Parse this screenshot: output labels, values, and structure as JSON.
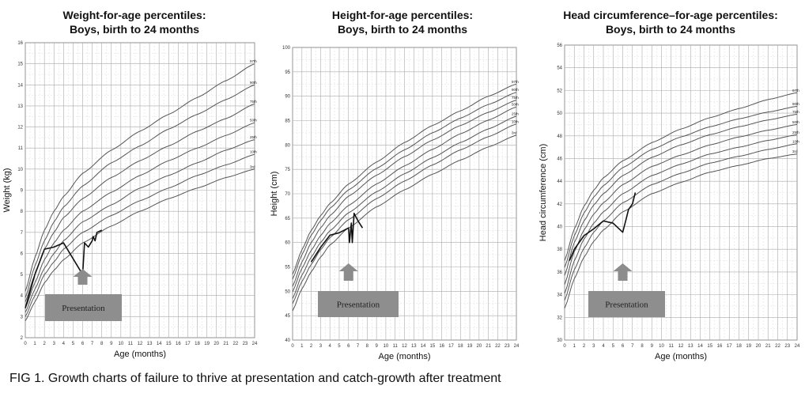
{
  "caption": "FIG 1.  Growth charts of failure to thrive at presentation and catch-growth after treatment",
  "chart_data": [
    {
      "type": "line",
      "title_line1": "Weight-for-age percentiles:",
      "title_line2": "Boys, birth to 24 months",
      "xlabel": "Age (months)",
      "ylabel": "Weight (kg)",
      "xlim": [
        0,
        24
      ],
      "ylim": [
        2,
        16
      ],
      "xticks": [
        0,
        1,
        2,
        3,
        4,
        5,
        6,
        7,
        8,
        9,
        10,
        11,
        12,
        13,
        14,
        15,
        16,
        17,
        18,
        19,
        20,
        21,
        22,
        23,
        24
      ],
      "yticks": [
        2,
        3,
        4,
        5,
        6,
        7,
        8,
        9,
        10,
        11,
        12,
        13,
        14,
        15,
        16
      ],
      "percentile_series": [
        {
          "name": "97th",
          "x": [
            0,
            1,
            2,
            3,
            4,
            6,
            9,
            12,
            15,
            18,
            21,
            24
          ],
          "y": [
            4.2,
            5.8,
            7.1,
            8.0,
            8.7,
            9.8,
            10.9,
            11.8,
            12.6,
            13.4,
            14.2,
            15.0
          ]
        },
        {
          "name": "90th",
          "x": [
            0,
            1,
            2,
            3,
            4,
            6,
            9,
            12,
            15,
            18,
            21,
            24
          ],
          "y": [
            3.9,
            5.4,
            6.6,
            7.5,
            8.2,
            9.2,
            10.3,
            11.1,
            11.9,
            12.6,
            13.3,
            14.0
          ]
        },
        {
          "name": "75th",
          "x": [
            0,
            1,
            2,
            3,
            4,
            6,
            9,
            12,
            15,
            18,
            21,
            24
          ],
          "y": [
            3.7,
            5.0,
            6.2,
            7.0,
            7.7,
            8.6,
            9.6,
            10.4,
            11.1,
            11.8,
            12.4,
            13.1
          ]
        },
        {
          "name": "50th",
          "x": [
            0,
            1,
            2,
            3,
            4,
            6,
            9,
            12,
            15,
            18,
            21,
            24
          ],
          "y": [
            3.4,
            4.6,
            5.7,
            6.5,
            7.1,
            8.0,
            8.9,
            9.7,
            10.4,
            11.0,
            11.6,
            12.2
          ]
        },
        {
          "name": "25th",
          "x": [
            0,
            1,
            2,
            3,
            4,
            6,
            9,
            12,
            15,
            18,
            21,
            24
          ],
          "y": [
            3.2,
            4.3,
            5.3,
            6.0,
            6.6,
            7.5,
            8.3,
            9.1,
            9.7,
            10.3,
            10.9,
            11.4
          ]
        },
        {
          "name": "10th",
          "x": [
            0,
            1,
            2,
            3,
            4,
            6,
            9,
            12,
            15,
            18,
            21,
            24
          ],
          "y": [
            3.0,
            4.0,
            5.0,
            5.6,
            6.2,
            7.0,
            7.8,
            8.5,
            9.1,
            9.7,
            10.2,
            10.7
          ]
        },
        {
          "name": "3rd",
          "x": [
            0,
            1,
            2,
            3,
            4,
            6,
            9,
            12,
            15,
            18,
            21,
            24
          ],
          "y": [
            2.8,
            3.7,
            4.6,
            5.2,
            5.7,
            6.5,
            7.3,
            8.0,
            8.6,
            9.1,
            9.6,
            10.0
          ]
        }
      ],
      "patient": {
        "x": [
          0,
          1,
          2,
          3,
          4,
          6,
          6.2,
          6.6,
          7,
          7.1,
          7.3,
          7.5,
          8
        ],
        "y": [
          3.4,
          5.0,
          6.2,
          6.3,
          6.5,
          5.0,
          6.5,
          6.3,
          6.6,
          6.8,
          6.6,
          7.0,
          7.1
        ]
      },
      "annotation": {
        "label": "Presentation",
        "arrow_x": 6
      }
    },
    {
      "type": "line",
      "title_line1": "Height-for-age percentiles:",
      "title_line2": "Boys, birth to 24 months",
      "xlabel": "Age (months)",
      "ylabel": "Height (cm)",
      "xlim": [
        0,
        24
      ],
      "ylim": [
        40,
        100
      ],
      "xticks": [
        0,
        1,
        2,
        3,
        4,
        5,
        6,
        7,
        8,
        9,
        10,
        11,
        12,
        13,
        14,
        15,
        16,
        17,
        18,
        19,
        20,
        21,
        22,
        23,
        24
      ],
      "yticks": [
        40,
        45,
        50,
        55,
        60,
        65,
        70,
        75,
        80,
        85,
        90,
        95,
        100
      ],
      "percentile_series": [
        {
          "name": "97th",
          "x": [
            0,
            1,
            2,
            3,
            4,
            6,
            9,
            12,
            15,
            18,
            21,
            24
          ],
          "y": [
            53.5,
            58.5,
            62.5,
            65.5,
            68.0,
            72.0,
            76.5,
            80.5,
            84.0,
            87.0,
            90.0,
            92.5
          ]
        },
        {
          "name": "90th",
          "x": [
            0,
            1,
            2,
            3,
            4,
            6,
            9,
            12,
            15,
            18,
            21,
            24
          ],
          "y": [
            52.5,
            57.5,
            61.5,
            64.5,
            67.0,
            70.8,
            75.2,
            79.0,
            82.5,
            85.5,
            88.3,
            90.8
          ]
        },
        {
          "name": "75th",
          "x": [
            0,
            1,
            2,
            3,
            4,
            6,
            9,
            12,
            15,
            18,
            21,
            24
          ],
          "y": [
            51.0,
            56.0,
            60.0,
            63.0,
            65.5,
            69.5,
            73.8,
            77.6,
            81.0,
            84.0,
            86.7,
            89.2
          ]
        },
        {
          "name": "50th",
          "x": [
            0,
            1,
            2,
            3,
            4,
            6,
            9,
            12,
            15,
            18,
            21,
            24
          ],
          "y": [
            49.9,
            54.7,
            58.4,
            61.4,
            63.9,
            67.6,
            72.0,
            75.7,
            79.1,
            82.3,
            85.1,
            87.8
          ]
        },
        {
          "name": "25th",
          "x": [
            0,
            1,
            2,
            3,
            4,
            6,
            9,
            12,
            15,
            18,
            21,
            24
          ],
          "y": [
            48.5,
            53.3,
            57.0,
            60.0,
            62.4,
            66.1,
            70.4,
            74.1,
            77.4,
            80.5,
            83.3,
            85.9
          ]
        },
        {
          "name": "10th",
          "x": [
            0,
            1,
            2,
            3,
            4,
            6,
            9,
            12,
            15,
            18,
            21,
            24
          ],
          "y": [
            47.5,
            52.0,
            55.5,
            58.5,
            61.0,
            64.7,
            69.0,
            72.6,
            75.9,
            79.0,
            81.7,
            84.3
          ]
        },
        {
          "name": "3rd",
          "x": [
            0,
            1,
            2,
            3,
            4,
            6,
            9,
            12,
            15,
            18,
            21,
            24
          ],
          "y": [
            46.0,
            50.5,
            54.0,
            57.0,
            59.5,
            63.0,
            67.3,
            70.8,
            74.0,
            76.9,
            79.6,
            82.0
          ]
        }
      ],
      "patient": {
        "x": [
          2,
          3,
          4,
          5,
          6,
          6.1,
          6.3,
          6.4,
          6.6,
          7,
          7.5
        ],
        "y": [
          56,
          59,
          61.5,
          62,
          63,
          60,
          64,
          60,
          66,
          64.5,
          63
        ]
      },
      "annotation": {
        "label": "Presentation",
        "arrow_x": 6
      }
    },
    {
      "type": "line",
      "title_line1": "Head circumference–for-age percentiles:",
      "title_line2": "Boys, birth to 24 months",
      "xlabel": "Age (months)",
      "ylabel": "Head circumference (cm)",
      "xlim": [
        0,
        24
      ],
      "ylim": [
        30,
        56
      ],
      "xticks": [
        0,
        1,
        2,
        3,
        4,
        5,
        6,
        7,
        8,
        9,
        10,
        11,
        12,
        13,
        14,
        15,
        16,
        17,
        18,
        19,
        20,
        21,
        22,
        23,
        24
      ],
      "yticks": [
        30,
        32,
        34,
        36,
        38,
        40,
        42,
        44,
        46,
        48,
        50,
        52,
        54,
        56
      ],
      "percentile_series": [
        {
          "name": "97th",
          "x": [
            0,
            1,
            2,
            3,
            4,
            6,
            9,
            12,
            15,
            18,
            21,
            24
          ],
          "y": [
            37.0,
            39.8,
            41.8,
            43.2,
            44.3,
            45.8,
            47.4,
            48.6,
            49.6,
            50.4,
            51.2,
            51.8
          ]
        },
        {
          "name": "90th",
          "x": [
            0,
            1,
            2,
            3,
            4,
            6,
            9,
            12,
            15,
            18,
            21,
            24
          ],
          "y": [
            36.4,
            39.2,
            41.2,
            42.6,
            43.6,
            45.2,
            46.8,
            47.9,
            48.8,
            49.5,
            50.1,
            50.6
          ]
        },
        {
          "name": "75th",
          "x": [
            0,
            1,
            2,
            3,
            4,
            6,
            9,
            12,
            15,
            18,
            21,
            24
          ],
          "y": [
            35.7,
            38.6,
            40.5,
            41.9,
            42.9,
            44.5,
            46.1,
            47.2,
            48.1,
            48.8,
            49.4,
            49.9
          ]
        },
        {
          "name": "50th",
          "x": [
            0,
            1,
            2,
            3,
            4,
            6,
            9,
            12,
            15,
            18,
            21,
            24
          ],
          "y": [
            34.9,
            37.8,
            39.7,
            41.1,
            42.1,
            43.7,
            45.3,
            46.3,
            47.2,
            47.9,
            48.5,
            49.0
          ]
        },
        {
          "name": "25th",
          "x": [
            0,
            1,
            2,
            3,
            4,
            6,
            9,
            12,
            15,
            18,
            21,
            24
          ],
          "y": [
            34.1,
            37.0,
            38.9,
            40.3,
            41.3,
            42.9,
            44.5,
            45.5,
            46.4,
            47.0,
            47.6,
            48.1
          ]
        },
        {
          "name": "10th",
          "x": [
            0,
            1,
            2,
            3,
            4,
            6,
            9,
            12,
            15,
            18,
            21,
            24
          ],
          "y": [
            33.5,
            36.2,
            38.1,
            39.5,
            40.5,
            42.1,
            43.7,
            44.7,
            45.6,
            46.2,
            46.8,
            47.3
          ]
        },
        {
          "name": "3rd",
          "x": [
            0,
            1,
            2,
            3,
            4,
            6,
            9,
            12,
            15,
            18,
            21,
            24
          ],
          "y": [
            32.8,
            35.4,
            37.3,
            38.7,
            39.7,
            41.3,
            42.9,
            43.9,
            44.8,
            45.4,
            46.0,
            46.4
          ]
        }
      ],
      "patient": {
        "x": [
          0.5,
          1,
          2,
          3,
          4,
          5,
          6,
          6.3,
          6.6,
          7,
          7.3
        ],
        "y": [
          37.0,
          38.0,
          39.2,
          39.8,
          40.5,
          40.3,
          39.5,
          40.5,
          41.5,
          42.0,
          43.0
        ]
      },
      "annotation": {
        "label": "Presentation",
        "arrow_x": 6
      }
    }
  ]
}
